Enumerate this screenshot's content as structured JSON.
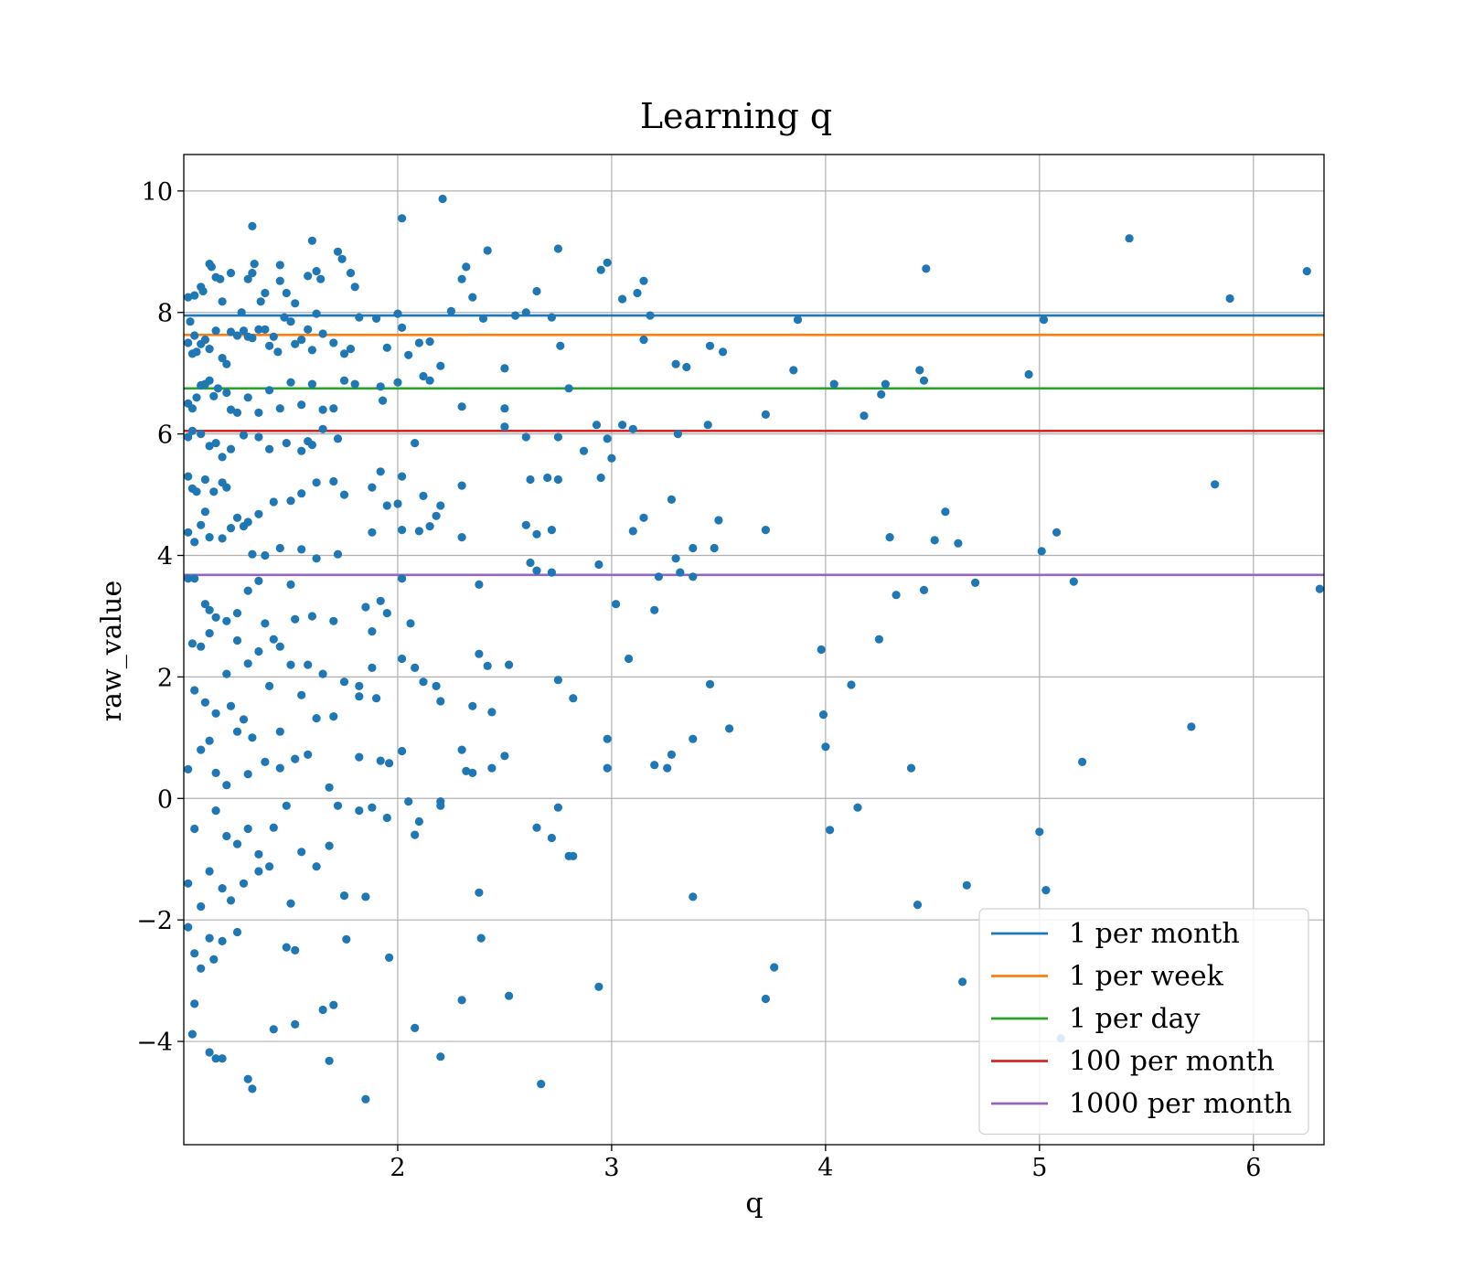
{
  "chart_data": {
    "type": "scatter",
    "title": "Learning q",
    "xlabel": "q",
    "ylabel": "raw_value",
    "xlim": [
      1.0,
      6.33
    ],
    "ylim": [
      -5.7,
      10.6
    ],
    "xticks": [
      2,
      3,
      4,
      5,
      6
    ],
    "xtick_labels": [
      "2",
      "3",
      "4",
      "5",
      "6"
    ],
    "yticks": [
      -4,
      -2,
      0,
      2,
      4,
      6,
      8,
      10
    ],
    "ytick_labels": [
      "−4",
      "−2",
      "0",
      "2",
      "4",
      "6",
      "8",
      "10"
    ],
    "grid": true,
    "legend_position": "bottom-right",
    "point_color": "#1f77b4",
    "hlines": [
      {
        "name": "1 per month",
        "y": 7.95,
        "color": "#1f77b4"
      },
      {
        "name": "1 per week",
        "y": 7.63,
        "color": "#ff7f0e"
      },
      {
        "name": "1 per day",
        "y": 6.75,
        "color": "#2ca02c"
      },
      {
        "name": "100 per month",
        "y": 6.05,
        "color": "#d62728"
      },
      {
        "name": "1000 per month",
        "y": 3.68,
        "color": "#9467bd"
      }
    ],
    "points": [
      [
        1.02,
        8.25
      ],
      [
        1.03,
        7.85
      ],
      [
        1.05,
        8.28
      ],
      [
        1.08,
        8.42
      ],
      [
        1.09,
        8.35
      ],
      [
        1.12,
        8.8
      ],
      [
        1.13,
        8.75
      ],
      [
        1.15,
        8.58
      ],
      [
        1.17,
        8.55
      ],
      [
        1.18,
        8.18
      ],
      [
        1.22,
        8.65
      ],
      [
        1.27,
        8.0
      ],
      [
        1.3,
        8.55
      ],
      [
        1.32,
        8.65
      ],
      [
        1.33,
        8.8
      ],
      [
        1.32,
        9.42
      ],
      [
        1.36,
        8.18
      ],
      [
        1.38,
        8.32
      ],
      [
        1.45,
        8.78
      ],
      [
        1.45,
        8.52
      ],
      [
        1.48,
        8.32
      ],
      [
        1.52,
        8.15
      ],
      [
        1.58,
        8.6
      ],
      [
        1.6,
        9.18
      ],
      [
        1.62,
        8.68
      ],
      [
        1.64,
        8.55
      ],
      [
        1.72,
        9.0
      ],
      [
        1.74,
        8.88
      ],
      [
        1.78,
        8.65
      ],
      [
        1.8,
        8.42
      ],
      [
        1.02,
        7.5
      ],
      [
        1.04,
        7.32
      ],
      [
        1.05,
        7.62
      ],
      [
        1.06,
        7.35
      ],
      [
        1.08,
        7.48
      ],
      [
        1.1,
        7.55
      ],
      [
        1.12,
        7.4
      ],
      [
        1.15,
        7.7
      ],
      [
        1.18,
        7.25
      ],
      [
        1.2,
        7.15
      ],
      [
        1.22,
        7.68
      ],
      [
        1.25,
        7.62
      ],
      [
        1.28,
        7.7
      ],
      [
        1.3,
        7.6
      ],
      [
        1.32,
        7.58
      ],
      [
        1.35,
        7.72
      ],
      [
        1.38,
        7.72
      ],
      [
        1.4,
        7.45
      ],
      [
        1.42,
        7.6
      ],
      [
        1.44,
        7.35
      ],
      [
        1.47,
        7.92
      ],
      [
        1.5,
        7.85
      ],
      [
        1.52,
        7.48
      ],
      [
        1.55,
        7.55
      ],
      [
        1.58,
        7.72
      ],
      [
        1.6,
        7.38
      ],
      [
        1.62,
        7.98
      ],
      [
        1.65,
        7.65
      ],
      [
        1.7,
        7.5
      ],
      [
        1.75,
        7.32
      ],
      [
        1.78,
        7.4
      ],
      [
        1.82,
        7.92
      ],
      [
        1.9,
        7.9
      ],
      [
        1.95,
        7.42
      ],
      [
        2.0,
        7.98
      ],
      [
        2.02,
        7.75
      ],
      [
        2.05,
        7.3
      ],
      [
        2.1,
        7.5
      ],
      [
        2.15,
        7.52
      ],
      [
        2.2,
        7.12
      ],
      [
        2.25,
        8.02
      ],
      [
        2.3,
        8.55
      ],
      [
        2.32,
        8.75
      ],
      [
        2.35,
        8.25
      ],
      [
        2.4,
        7.9
      ],
      [
        2.42,
        9.02
      ],
      [
        2.5,
        7.08
      ],
      [
        2.55,
        7.95
      ],
      [
        2.6,
        8.0
      ],
      [
        2.65,
        8.35
      ],
      [
        2.72,
        7.92
      ],
      [
        2.75,
        9.05
      ],
      [
        2.76,
        7.45
      ],
      [
        2.95,
        8.7
      ],
      [
        2.98,
        8.82
      ],
      [
        3.05,
        8.22
      ],
      [
        3.12,
        8.32
      ],
      [
        3.15,
        8.52
      ],
      [
        3.18,
        7.95
      ],
      [
        3.15,
        7.55
      ],
      [
        3.3,
        7.15
      ],
      [
        3.35,
        7.1
      ],
      [
        3.46,
        7.45
      ],
      [
        3.52,
        7.35
      ],
      [
        3.85,
        7.05
      ],
      [
        3.87,
        7.88
      ],
      [
        4.47,
        8.72
      ],
      [
        5.42,
        9.22
      ],
      [
        5.02,
        7.88
      ],
      [
        4.95,
        6.98
      ],
      [
        5.89,
        8.23
      ],
      [
        6.25,
        8.68
      ],
      [
        2.21,
        9.87
      ],
      [
        2.02,
        9.55
      ],
      [
        1.02,
        6.5
      ],
      [
        1.04,
        6.42
      ],
      [
        1.06,
        6.6
      ],
      [
        1.08,
        6.8
      ],
      [
        1.1,
        6.82
      ],
      [
        1.12,
        6.88
      ],
      [
        1.14,
        6.62
      ],
      [
        1.16,
        6.75
      ],
      [
        1.2,
        6.68
      ],
      [
        1.22,
        6.4
      ],
      [
        1.25,
        6.35
      ],
      [
        1.3,
        6.6
      ],
      [
        1.35,
        6.35
      ],
      [
        1.4,
        6.72
      ],
      [
        1.45,
        6.42
      ],
      [
        1.5,
        6.85
      ],
      [
        1.55,
        6.48
      ],
      [
        1.6,
        6.82
      ],
      [
        1.65,
        6.4
      ],
      [
        1.7,
        6.42
      ],
      [
        1.75,
        6.88
      ],
      [
        1.8,
        6.82
      ],
      [
        1.92,
        6.78
      ],
      [
        1.93,
        6.55
      ],
      [
        2.0,
        6.85
      ],
      [
        2.12,
        6.95
      ],
      [
        2.15,
        6.88
      ],
      [
        2.3,
        6.45
      ],
      [
        2.5,
        6.42
      ],
      [
        2.5,
        6.12
      ],
      [
        2.8,
        6.75
      ],
      [
        2.93,
        6.15
      ],
      [
        3.05,
        6.15
      ],
      [
        3.1,
        6.08
      ],
      [
        3.31,
        6.0
      ],
      [
        3.45,
        6.15
      ],
      [
        3.72,
        6.32
      ],
      [
        4.04,
        6.82
      ],
      [
        4.18,
        6.3
      ],
      [
        4.26,
        6.65
      ],
      [
        4.28,
        6.82
      ],
      [
        4.44,
        7.05
      ],
      [
        4.46,
        6.88
      ],
      [
        1.02,
        5.95
      ],
      [
        1.04,
        6.05
      ],
      [
        1.08,
        6.0
      ],
      [
        1.12,
        5.8
      ],
      [
        1.15,
        5.85
      ],
      [
        1.18,
        5.62
      ],
      [
        1.22,
        5.75
      ],
      [
        1.28,
        5.98
      ],
      [
        1.35,
        5.95
      ],
      [
        1.4,
        5.75
      ],
      [
        1.48,
        5.85
      ],
      [
        1.55,
        5.72
      ],
      [
        1.58,
        5.88
      ],
      [
        1.6,
        5.82
      ],
      [
        1.65,
        6.08
      ],
      [
        1.72,
        5.92
      ],
      [
        2.08,
        5.85
      ],
      [
        2.6,
        5.95
      ],
      [
        2.75,
        5.95
      ],
      [
        2.98,
        5.92
      ],
      [
        3.0,
        5.6
      ],
      [
        2.87,
        5.72
      ],
      [
        1.02,
        5.3
      ],
      [
        1.04,
        5.1
      ],
      [
        1.06,
        5.05
      ],
      [
        1.1,
        5.25
      ],
      [
        1.14,
        5.05
      ],
      [
        1.18,
        5.2
      ],
      [
        1.2,
        5.12
      ],
      [
        1.25,
        4.62
      ],
      [
        1.3,
        4.55
      ],
      [
        1.35,
        4.68
      ],
      [
        1.42,
        4.88
      ],
      [
        1.5,
        4.9
      ],
      [
        1.55,
        5.02
      ],
      [
        1.62,
        5.2
      ],
      [
        1.7,
        5.22
      ],
      [
        1.75,
        5.0
      ],
      [
        1.88,
        5.12
      ],
      [
        1.92,
        5.38
      ],
      [
        1.95,
        4.82
      ],
      [
        2.0,
        4.85
      ],
      [
        2.02,
        5.3
      ],
      [
        2.12,
        4.98
      ],
      [
        2.18,
        4.65
      ],
      [
        2.2,
        4.82
      ],
      [
        2.3,
        5.15
      ],
      [
        2.62,
        5.25
      ],
      [
        2.7,
        5.28
      ],
      [
        2.75,
        5.25
      ],
      [
        2.95,
        5.28
      ],
      [
        3.28,
        4.92
      ],
      [
        1.02,
        4.38
      ],
      [
        1.05,
        4.22
      ],
      [
        1.08,
        4.5
      ],
      [
        1.1,
        4.72
      ],
      [
        1.12,
        4.3
      ],
      [
        1.18,
        4.28
      ],
      [
        1.22,
        4.45
      ],
      [
        1.28,
        4.48
      ],
      [
        1.32,
        4.02
      ],
      [
        1.38,
        4.0
      ],
      [
        1.45,
        4.12
      ],
      [
        1.55,
        4.1
      ],
      [
        1.62,
        3.95
      ],
      [
        1.72,
        4.02
      ],
      [
        1.88,
        4.38
      ],
      [
        2.02,
        4.42
      ],
      [
        2.1,
        4.4
      ],
      [
        2.15,
        4.48
      ],
      [
        2.3,
        4.3
      ],
      [
        2.6,
        4.5
      ],
      [
        2.65,
        4.35
      ],
      [
        2.72,
        4.42
      ],
      [
        3.1,
        4.4
      ],
      [
        3.15,
        4.62
      ],
      [
        3.3,
        3.95
      ],
      [
        3.38,
        4.12
      ],
      [
        3.5,
        4.58
      ],
      [
        3.48,
        4.12
      ],
      [
        3.72,
        4.42
      ],
      [
        4.3,
        4.3
      ],
      [
        4.56,
        4.72
      ],
      [
        4.51,
        4.25
      ],
      [
        4.62,
        4.2
      ],
      [
        5.01,
        4.07
      ],
      [
        5.08,
        4.38
      ],
      [
        5.82,
        5.17
      ],
      [
        1.02,
        3.62
      ],
      [
        1.05,
        3.62
      ],
      [
        1.1,
        3.2
      ],
      [
        1.12,
        3.1
      ],
      [
        1.15,
        2.98
      ],
      [
        1.2,
        2.92
      ],
      [
        1.25,
        3.05
      ],
      [
        1.3,
        3.42
      ],
      [
        1.35,
        3.58
      ],
      [
        1.38,
        2.88
      ],
      [
        1.42,
        2.62
      ],
      [
        1.5,
        3.52
      ],
      [
        1.52,
        2.95
      ],
      [
        1.6,
        3.0
      ],
      [
        1.7,
        2.92
      ],
      [
        1.85,
        3.15
      ],
      [
        1.88,
        2.75
      ],
      [
        1.92,
        3.25
      ],
      [
        1.95,
        3.05
      ],
      [
        2.02,
        3.62
      ],
      [
        2.06,
        2.88
      ],
      [
        2.38,
        3.52
      ],
      [
        2.62,
        3.88
      ],
      [
        2.65,
        3.75
      ],
      [
        2.72,
        3.72
      ],
      [
        2.94,
        3.85
      ],
      [
        3.22,
        3.65
      ],
      [
        3.32,
        3.72
      ],
      [
        3.38,
        3.65
      ],
      [
        4.33,
        3.35
      ],
      [
        4.46,
        3.43
      ],
      [
        4.7,
        3.55
      ],
      [
        5.16,
        3.57
      ],
      [
        6.31,
        3.45
      ],
      [
        3.02,
        3.2
      ],
      [
        3.2,
        3.1
      ],
      [
        1.04,
        2.55
      ],
      [
        1.08,
        2.5
      ],
      [
        1.12,
        2.72
      ],
      [
        1.2,
        2.05
      ],
      [
        1.25,
        2.6
      ],
      [
        1.3,
        2.22
      ],
      [
        1.35,
        2.42
      ],
      [
        1.45,
        2.5
      ],
      [
        1.5,
        2.2
      ],
      [
        1.58,
        2.2
      ],
      [
        1.65,
        2.05
      ],
      [
        1.75,
        1.92
      ],
      [
        1.82,
        1.85
      ],
      [
        1.88,
        2.15
      ],
      [
        2.02,
        2.3
      ],
      [
        2.08,
        2.15
      ],
      [
        2.12,
        1.92
      ],
      [
        2.18,
        1.85
      ],
      [
        2.38,
        2.38
      ],
      [
        2.42,
        2.18
      ],
      [
        2.52,
        2.2
      ],
      [
        2.75,
        1.95
      ],
      [
        3.08,
        2.3
      ],
      [
        3.98,
        2.45
      ],
      [
        4.25,
        2.62
      ],
      [
        1.05,
        1.78
      ],
      [
        1.1,
        1.58
      ],
      [
        1.15,
        1.4
      ],
      [
        1.22,
        1.52
      ],
      [
        1.28,
        1.3
      ],
      [
        1.32,
        1.0
      ],
      [
        1.4,
        1.85
      ],
      [
        1.45,
        1.1
      ],
      [
        1.55,
        1.7
      ],
      [
        1.62,
        1.32
      ],
      [
        1.7,
        1.35
      ],
      [
        1.82,
        1.68
      ],
      [
        1.9,
        1.65
      ],
      [
        2.2,
        1.6
      ],
      [
        2.35,
        1.52
      ],
      [
        2.44,
        1.42
      ],
      [
        2.82,
        1.65
      ],
      [
        3.46,
        1.88
      ],
      [
        3.55,
        1.15
      ],
      [
        3.99,
        1.38
      ],
      [
        4.12,
        1.87
      ],
      [
        5.71,
        1.18
      ],
      [
        1.08,
        0.8
      ],
      [
        1.12,
        0.95
      ],
      [
        1.15,
        0.42
      ],
      [
        1.2,
        0.22
      ],
      [
        1.25,
        1.1
      ],
      [
        1.3,
        0.4
      ],
      [
        1.38,
        0.6
      ],
      [
        1.45,
        0.5
      ],
      [
        1.52,
        0.65
      ],
      [
        1.58,
        0.72
      ],
      [
        1.68,
        0.18
      ],
      [
        1.82,
        0.68
      ],
      [
        1.92,
        0.62
      ],
      [
        1.96,
        0.58
      ],
      [
        2.02,
        0.78
      ],
      [
        2.3,
        0.8
      ],
      [
        2.32,
        0.45
      ],
      [
        2.35,
        0.42
      ],
      [
        2.44,
        0.5
      ],
      [
        2.5,
        0.7
      ],
      [
        2.98,
        0.98
      ],
      [
        2.98,
        0.5
      ],
      [
        3.2,
        0.55
      ],
      [
        3.26,
        0.5
      ],
      [
        3.28,
        0.72
      ],
      [
        3.38,
        0.98
      ],
      [
        4.0,
        0.85
      ],
      [
        4.4,
        0.5
      ],
      [
        5.2,
        0.6
      ],
      [
        1.02,
        0.48
      ],
      [
        1.05,
        -0.5
      ],
      [
        1.15,
        -0.2
      ],
      [
        1.2,
        -0.62
      ],
      [
        1.25,
        -0.75
      ],
      [
        1.3,
        -0.5
      ],
      [
        1.35,
        -0.92
      ],
      [
        1.42,
        -0.48
      ],
      [
        1.48,
        -0.12
      ],
      [
        1.55,
        -0.88
      ],
      [
        1.62,
        -1.12
      ],
      [
        1.68,
        -0.78
      ],
      [
        1.72,
        -0.12
      ],
      [
        1.82,
        -0.2
      ],
      [
        1.88,
        -0.15
      ],
      [
        1.95,
        -0.32
      ],
      [
        2.05,
        -0.05
      ],
      [
        2.1,
        -0.38
      ],
      [
        2.2,
        -0.05
      ],
      [
        2.2,
        -0.12
      ],
      [
        2.08,
        -0.6
      ],
      [
        2.65,
        -0.48
      ],
      [
        2.72,
        -0.65
      ],
      [
        2.75,
        -0.15
      ],
      [
        2.8,
        -0.95
      ],
      [
        2.82,
        -0.95
      ],
      [
        4.02,
        -0.52
      ],
      [
        4.15,
        -0.15
      ],
      [
        5.0,
        -0.55
      ],
      [
        1.02,
        -1.4
      ],
      [
        1.08,
        -1.78
      ],
      [
        1.12,
        -1.2
      ],
      [
        1.18,
        -1.48
      ],
      [
        1.22,
        -1.68
      ],
      [
        1.28,
        -1.4
      ],
      [
        1.35,
        -1.2
      ],
      [
        1.4,
        -1.12
      ],
      [
        1.5,
        -1.73
      ],
      [
        1.75,
        -1.6
      ],
      [
        1.85,
        -1.62
      ],
      [
        2.38,
        -1.55
      ],
      [
        3.38,
        -1.62
      ],
      [
        4.43,
        -1.75
      ],
      [
        4.66,
        -1.43
      ],
      [
        5.03,
        -1.51
      ],
      [
        1.02,
        -2.12
      ],
      [
        1.05,
        -2.55
      ],
      [
        1.08,
        -2.8
      ],
      [
        1.12,
        -2.3
      ],
      [
        1.14,
        -2.65
      ],
      [
        1.18,
        -2.35
      ],
      [
        1.25,
        -2.2
      ],
      [
        1.48,
        -2.45
      ],
      [
        1.52,
        -2.5
      ],
      [
        1.76,
        -2.32
      ],
      [
        1.96,
        -2.62
      ],
      [
        2.39,
        -2.3
      ],
      [
        1.05,
        -3.38
      ],
      [
        1.12,
        -4.18
      ],
      [
        1.15,
        -4.28
      ],
      [
        1.18,
        -4.28
      ],
      [
        1.04,
        -3.88
      ],
      [
        1.3,
        -4.62
      ],
      [
        1.32,
        -4.78
      ],
      [
        1.42,
        -3.8
      ],
      [
        1.52,
        -3.72
      ],
      [
        1.65,
        -3.48
      ],
      [
        1.68,
        -4.32
      ],
      [
        1.7,
        -3.4
      ],
      [
        1.85,
        -4.95
      ],
      [
        2.08,
        -3.78
      ],
      [
        2.2,
        -4.25
      ],
      [
        2.3,
        -3.32
      ],
      [
        2.52,
        -3.25
      ],
      [
        2.67,
        -4.7
      ],
      [
        2.94,
        -3.1
      ],
      [
        3.72,
        -3.3
      ],
      [
        3.76,
        -2.78
      ],
      [
        4.64,
        -3.02
      ],
      [
        5.1,
        -3.95
      ]
    ]
  }
}
